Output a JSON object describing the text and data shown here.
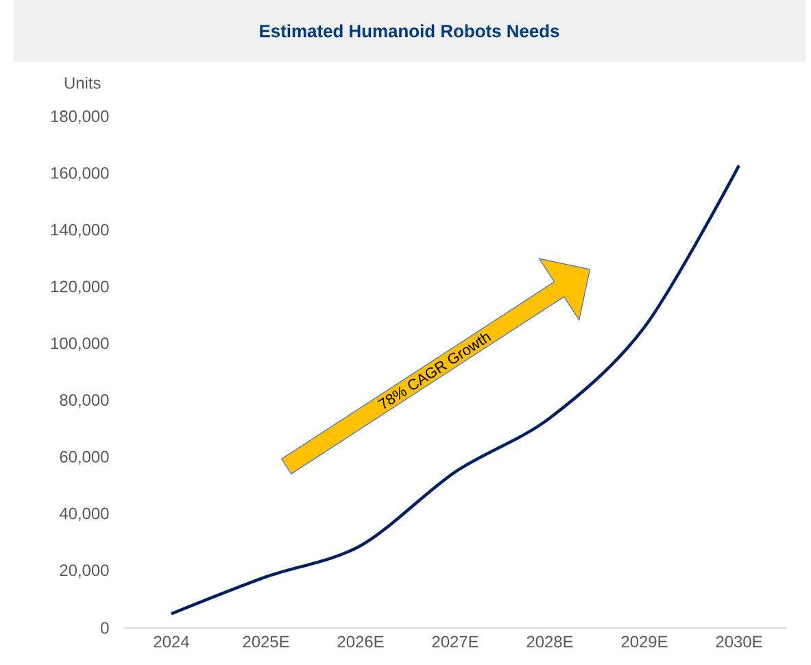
{
  "chart_data": {
    "type": "line",
    "title": "Estimated Humanoid Robots Needs",
    "ylabel": "Units",
    "categories": [
      "2024",
      "2025E",
      "2026E",
      "2027E",
      "2028E",
      "2029E",
      "2030E"
    ],
    "values": [
      5000,
      18000,
      29000,
      55000,
      74000,
      106000,
      163000
    ],
    "color": "#002060",
    "line_style": "solid",
    "ylim": [
      0,
      180000
    ],
    "yticks": [
      0,
      {
        "value": 20000,
        "label": "20,000"
      },
      {
        "value": 40000,
        "label": "40,000"
      },
      {
        "value": 60000,
        "label": "60,000"
      },
      {
        "value": 80000,
        "label": "80,000"
      },
      {
        "value": 100000,
        "label": "100,000"
      },
      {
        "value": 120000,
        "label": "120,000"
      },
      {
        "value": 140000,
        "label": "140,000"
      },
      {
        "value": 160000,
        "label": "160,000"
      },
      {
        "value": 180000,
        "label": "180,000"
      }
    ],
    "annotations": [
      "78% CAGR Growth"
    ]
  }
}
